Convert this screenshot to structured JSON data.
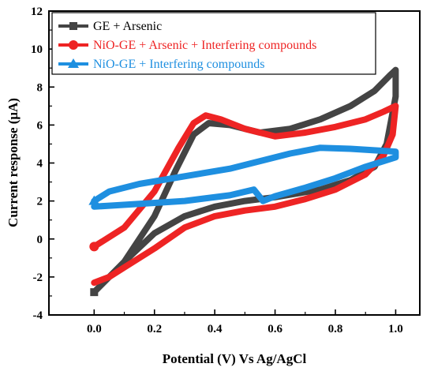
{
  "chart_data": {
    "type": "line",
    "xlabel": "Potential (V) Vs Ag/AgCl",
    "ylabel": "Current response (μA)",
    "xlim": [
      -0.15,
      1.08
    ],
    "ylim": [
      -4,
      12
    ],
    "x_ticks": [
      0.0,
      0.2,
      0.4,
      0.6,
      0.8,
      1.0
    ],
    "x_tick_labels": [
      "0.0",
      "0.2",
      "0.4",
      "0.6",
      "0.8",
      "1.0"
    ],
    "y_ticks": [
      -4,
      -2,
      0,
      2,
      4,
      6,
      8,
      10,
      12
    ],
    "y_tick_labels": [
      "-4",
      "-2",
      "0",
      "2",
      "4",
      "6",
      "8",
      "10",
      "12"
    ],
    "legend_position": "top-left",
    "series": [
      {
        "name": "GE + Arsenic",
        "color": "#444444",
        "marker": "square",
        "points": [
          [
            0.0,
            -2.8
          ],
          [
            0.1,
            -1.2
          ],
          [
            0.2,
            1.2
          ],
          [
            0.27,
            3.6
          ],
          [
            0.33,
            5.5
          ],
          [
            0.38,
            6.1
          ],
          [
            0.45,
            6.0
          ],
          [
            0.55,
            5.6
          ],
          [
            0.65,
            5.8
          ],
          [
            0.75,
            6.3
          ],
          [
            0.85,
            7.0
          ],
          [
            0.93,
            7.8
          ],
          [
            0.98,
            8.6
          ],
          [
            1.0,
            8.9
          ],
          [
            1.0,
            7.5
          ],
          [
            0.97,
            5.0
          ],
          [
            0.93,
            3.8
          ],
          [
            0.85,
            3.1
          ],
          [
            0.75,
            2.6
          ],
          [
            0.6,
            2.2
          ],
          [
            0.5,
            2.0
          ],
          [
            0.4,
            1.7
          ],
          [
            0.3,
            1.2
          ],
          [
            0.2,
            0.3
          ],
          [
            0.12,
            -0.9
          ],
          [
            0.05,
            -2.0
          ],
          [
            0.0,
            -2.8
          ]
        ]
      },
      {
        "name": "NiO-GE + Arsenic + Interfering compounds",
        "color": "#ee2424",
        "marker": "circle",
        "points": [
          [
            0.0,
            -0.4
          ],
          [
            0.1,
            0.6
          ],
          [
            0.2,
            2.5
          ],
          [
            0.28,
            4.8
          ],
          [
            0.33,
            6.1
          ],
          [
            0.37,
            6.5
          ],
          [
            0.42,
            6.3
          ],
          [
            0.5,
            5.8
          ],
          [
            0.6,
            5.4
          ],
          [
            0.7,
            5.6
          ],
          [
            0.8,
            5.9
          ],
          [
            0.9,
            6.3
          ],
          [
            0.96,
            6.7
          ],
          [
            1.0,
            7.0
          ],
          [
            0.99,
            5.5
          ],
          [
            0.96,
            4.4
          ],
          [
            0.9,
            3.4
          ],
          [
            0.8,
            2.6
          ],
          [
            0.7,
            2.1
          ],
          [
            0.6,
            1.7
          ],
          [
            0.5,
            1.5
          ],
          [
            0.4,
            1.2
          ],
          [
            0.3,
            0.6
          ],
          [
            0.2,
            -0.5
          ],
          [
            0.1,
            -1.5
          ],
          [
            0.05,
            -2.0
          ],
          [
            0.0,
            -2.3
          ]
        ]
      },
      {
        "name": "NiO-GE + Interfering compounds",
        "color": "#1e8fe0",
        "marker": "triangle",
        "points": [
          [
            0.0,
            2.0
          ],
          [
            0.05,
            2.5
          ],
          [
            0.15,
            2.9
          ],
          [
            0.3,
            3.3
          ],
          [
            0.45,
            3.7
          ],
          [
            0.55,
            4.1
          ],
          [
            0.65,
            4.5
          ],
          [
            0.75,
            4.8
          ],
          [
            0.85,
            4.75
          ],
          [
            0.95,
            4.65
          ],
          [
            1.0,
            4.6
          ],
          [
            1.0,
            4.3
          ],
          [
            0.9,
            3.8
          ],
          [
            0.8,
            3.2
          ],
          [
            0.7,
            2.7
          ],
          [
            0.6,
            2.25
          ],
          [
            0.56,
            2.0
          ],
          [
            0.53,
            2.6
          ],
          [
            0.45,
            2.3
          ],
          [
            0.3,
            2.0
          ],
          [
            0.15,
            1.85
          ],
          [
            0.05,
            1.75
          ],
          [
            0.0,
            1.7
          ]
        ]
      }
    ]
  }
}
